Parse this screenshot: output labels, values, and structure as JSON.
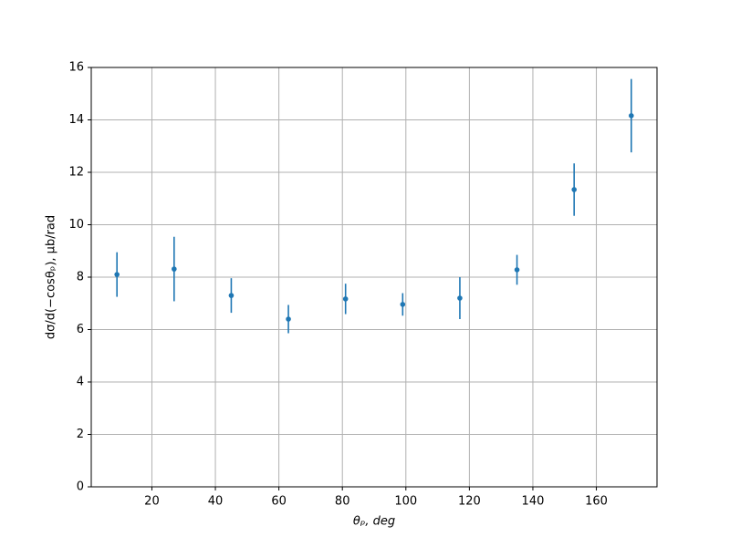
{
  "chart_data": {
    "type": "errorbar",
    "xlabel": "θₚ, deg",
    "ylabel": "dσ/d(−cosθₚ), μb/rad",
    "x": [
      9,
      27,
      45,
      63,
      81,
      99,
      117,
      135,
      153,
      171
    ],
    "values": [
      8.1,
      8.31,
      7.3,
      6.4,
      7.17,
      6.96,
      7.2,
      8.28,
      11.34,
      14.16
    ],
    "errors": [
      0.85,
      1.23,
      0.66,
      0.54,
      0.58,
      0.43,
      0.8,
      0.57,
      1.0,
      1.4
    ],
    "color": "#1f77b4",
    "xlim": [
      0.9,
      179.1
    ],
    "xticks": [
      20,
      40,
      60,
      80,
      100,
      120,
      140,
      160
    ],
    "ylim": [
      0,
      16
    ],
    "yticks": [
      0,
      2,
      4,
      6,
      8,
      10,
      12,
      14,
      16
    ],
    "grid": true
  }
}
